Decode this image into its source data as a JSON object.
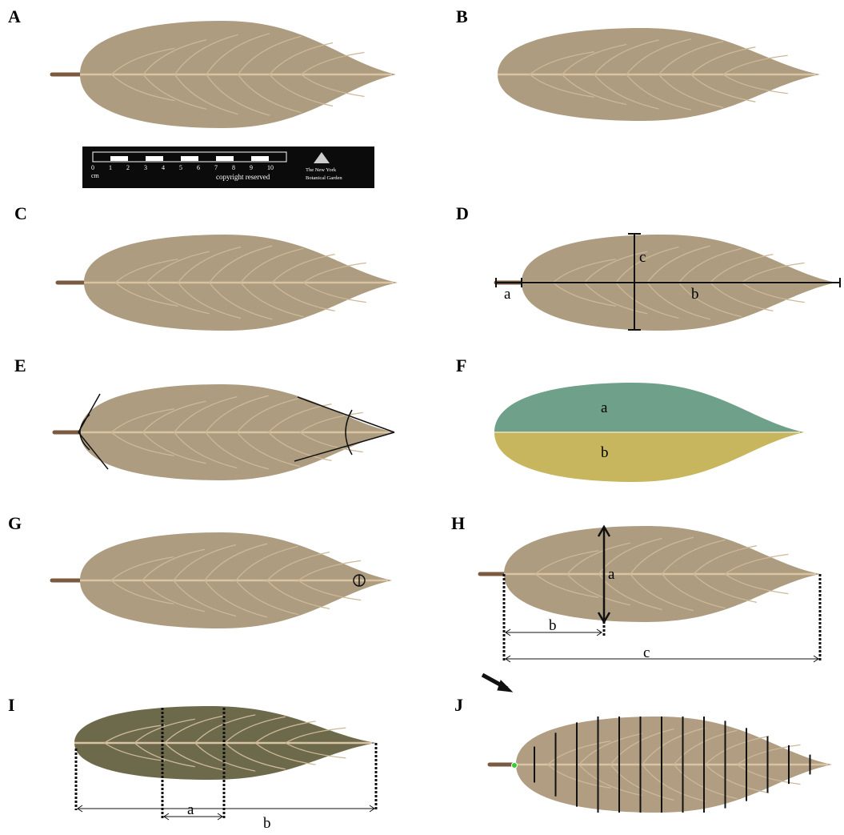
{
  "panels": [
    {
      "label": "A"
    },
    {
      "label": "B"
    },
    {
      "label": "C"
    },
    {
      "label": "D",
      "annotations": [
        "a",
        "b",
        "c"
      ]
    },
    {
      "label": "E"
    },
    {
      "label": "F",
      "annotations": [
        "a",
        "b"
      ]
    },
    {
      "label": "G"
    },
    {
      "label": "H",
      "annotations": [
        "a",
        "b",
        "c"
      ]
    },
    {
      "label": "I",
      "annotations": [
        "a",
        "b"
      ]
    },
    {
      "label": "J"
    }
  ],
  "scale_bar": {
    "numbers": [
      "0",
      "1",
      "2",
      "3",
      "4",
      "5",
      "6",
      "7",
      "8",
      "9",
      "10"
    ],
    "unit": "cm",
    "copyright": "copyright reserved",
    "institution_line1": "The New York",
    "institution_line2": "Botanical Garden"
  }
}
